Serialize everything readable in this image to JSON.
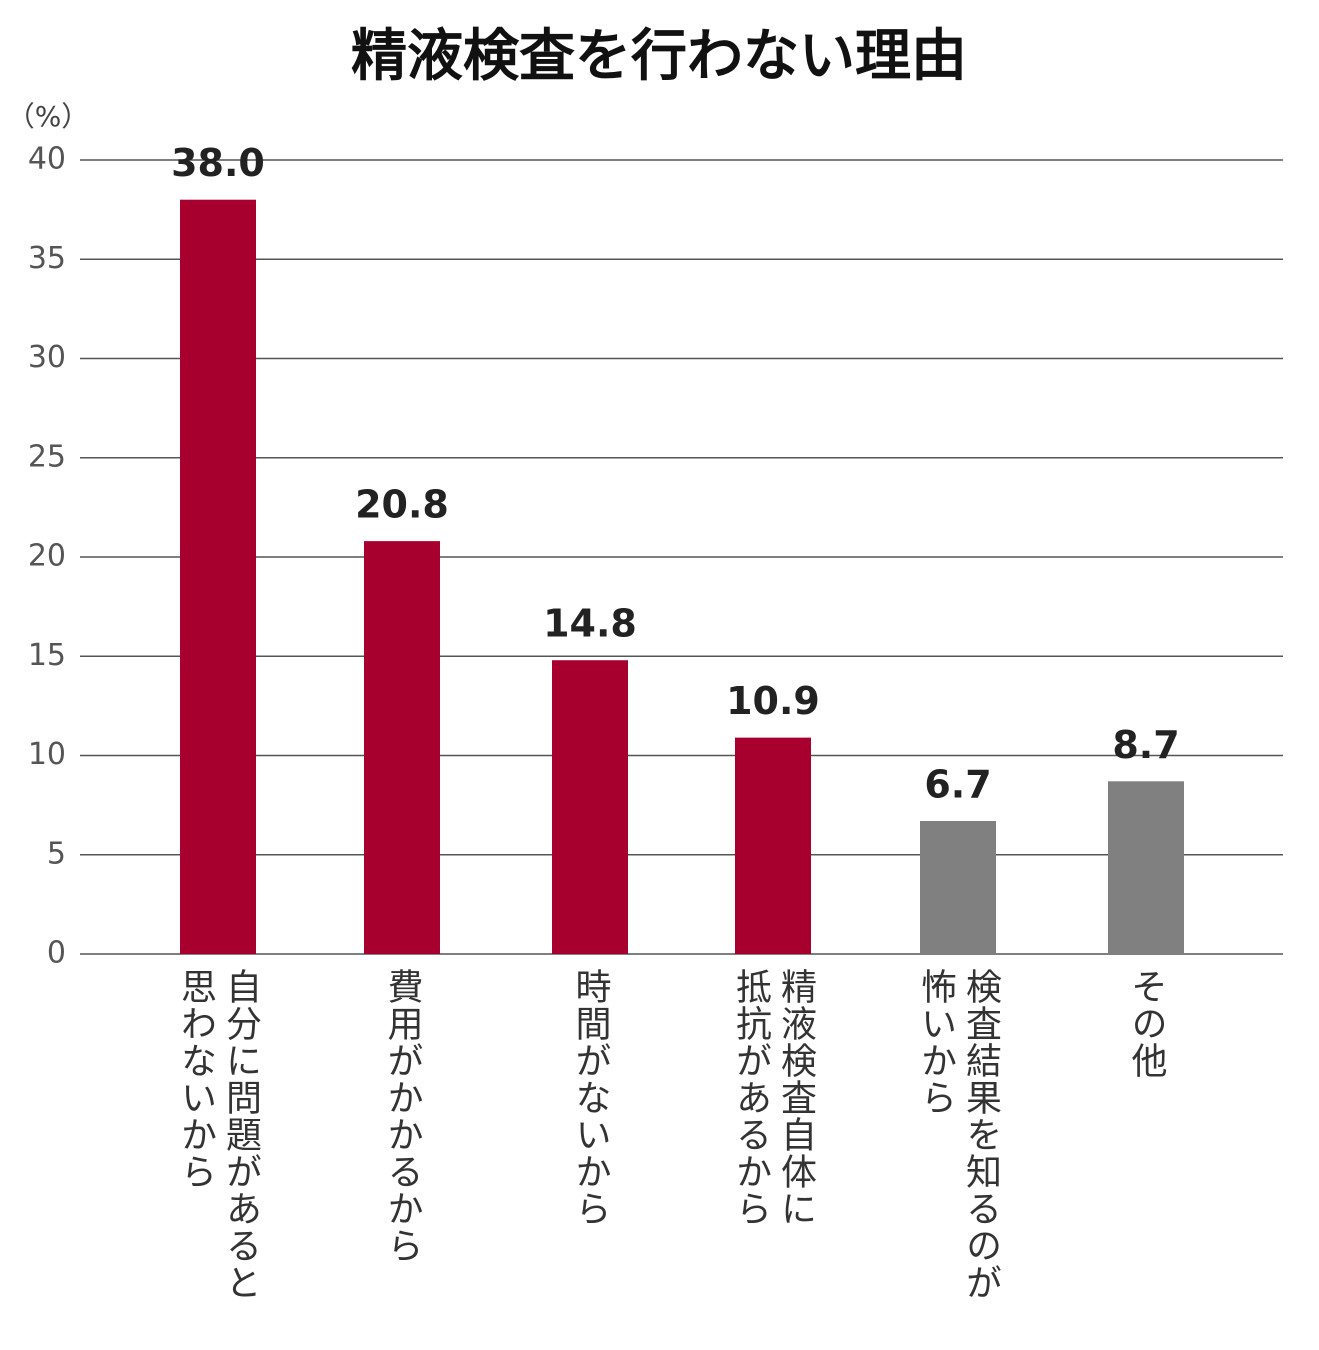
{
  "chart_data": {
    "type": "bar",
    "title": "精液検査を行わない理由",
    "y_label": "（%）",
    "categories": [
      [
        "自分に問題があると",
        "思わないから"
      ],
      [
        "費用がかかるから"
      ],
      [
        "時間がないから"
      ],
      [
        "精液検査自体に",
        "抵抗があるから"
      ],
      [
        "検査結果を知るのが",
        "怖いから"
      ],
      [
        "その他"
      ]
    ],
    "values": [
      38.0,
      20.8,
      14.8,
      10.9,
      6.7,
      8.7
    ],
    "value_labels": [
      "38.0",
      "20.8",
      "14.8",
      "10.9",
      "6.7",
      "8.7"
    ],
    "colors": [
      "#a8002e",
      "#a8002e",
      "#a8002e",
      "#a8002e",
      "#808080",
      "#808080"
    ],
    "ylim": [
      0,
      40
    ],
    "yticks": [
      0,
      5,
      10,
      15,
      20,
      25,
      30,
      35,
      40
    ],
    "grid": true
  }
}
